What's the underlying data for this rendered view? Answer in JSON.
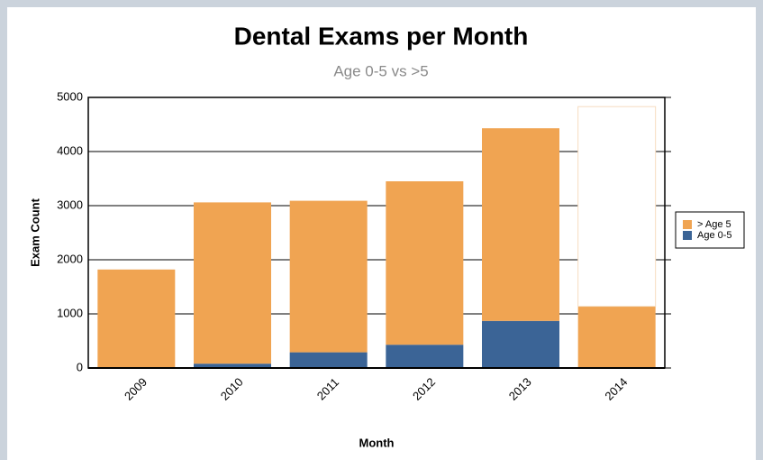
{
  "chart_data": {
    "type": "stacked_bar",
    "title": "Dental Exams per Month",
    "subtitle": "Age 0-5 vs >5",
    "x_label": "Month",
    "y_label": "Exam Count",
    "categories": [
      "2009",
      "2010",
      "2011",
      "2012",
      "2013",
      "2014"
    ],
    "series": [
      {
        "name": "Age 0-5",
        "color": "#3b6496",
        "values": [
          0,
          80,
          290,
          430,
          870,
          0
        ]
      },
      {
        "name": "> Age 5",
        "color": "#f0a452",
        "values": [
          1820,
          2980,
          2800,
          3020,
          3560,
          1140
        ]
      },
      {
        "color": "#ffffff",
        "values": [
          null,
          null,
          null,
          null,
          null,
          3690
        ]
      }
    ],
    "ylim": [
      0,
      5000
    ],
    "yticks": [
      0,
      1000,
      2000,
      3000,
      4000,
      5000
    ],
    "grid": true
  }
}
